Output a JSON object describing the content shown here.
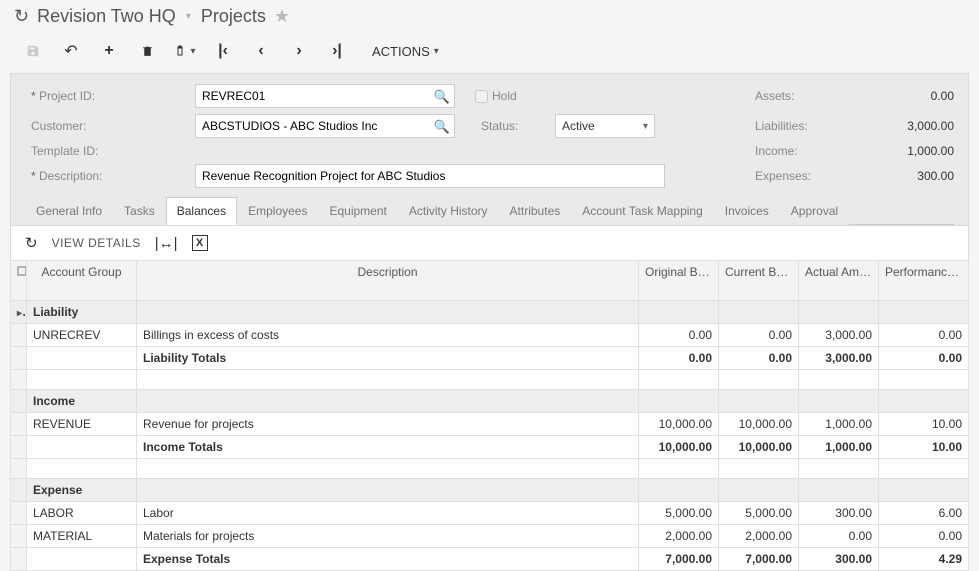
{
  "title": {
    "org": "Revision Two HQ",
    "page": "Projects"
  },
  "toolbar": {
    "actions": "ACTIONS"
  },
  "form": {
    "labels": {
      "project_id": "Project ID:",
      "customer": "Customer:",
      "template_id": "Template ID:",
      "description": "Description:",
      "hold": "Hold",
      "status": "Status:",
      "assets": "Assets:",
      "liabilities": "Liabilities:",
      "income": "Income:",
      "expenses": "Expenses:"
    },
    "values": {
      "project_id": "REVREC01",
      "customer": "ABCSTUDIOS - ABC Studios Inc",
      "template_id": "",
      "description": "Revenue Recognition Project for ABC Studios",
      "status": "Active",
      "assets": "0.00",
      "liabilities": "3,000.00",
      "income": "1,000.00",
      "expenses": "300.00"
    }
  },
  "tabs": [
    "General Info",
    "Tasks",
    "Balances",
    "Employees",
    "Equipment",
    "Activity History",
    "Attributes",
    "Account Task Mapping",
    "Invoices",
    "Approval"
  ],
  "active_tab": "Balances",
  "grid_toolbar": {
    "view_details": "VIEW DETAILS"
  },
  "grid": {
    "columns": {
      "account_group": "Account Group",
      "description": "Description",
      "orig_budget": "Original Budgeted Amount",
      "curr_budget": "Current Budgeted Amount",
      "actual": "Actual Amount",
      "performance": "Performance (%)"
    },
    "rows": [
      {
        "type": "group",
        "pointer": true,
        "acct": "Liability"
      },
      {
        "type": "data",
        "acct": "UNRECREV",
        "desc": "Billings in excess of costs",
        "orig": "0.00",
        "curr": "0.00",
        "actual": "3,000.00",
        "perf": "0.00"
      },
      {
        "type": "total",
        "desc": "Liability Totals",
        "orig": "0.00",
        "curr": "0.00",
        "actual": "3,000.00",
        "perf": "0.00"
      },
      {
        "type": "spacer"
      },
      {
        "type": "group",
        "acct": "Income"
      },
      {
        "type": "data",
        "acct": "REVENUE",
        "desc": "Revenue for projects",
        "orig": "10,000.00",
        "curr": "10,000.00",
        "actual": "1,000.00",
        "perf": "10.00"
      },
      {
        "type": "total",
        "desc": "Income Totals",
        "orig": "10,000.00",
        "curr": "10,000.00",
        "actual": "1,000.00",
        "perf": "10.00"
      },
      {
        "type": "spacer"
      },
      {
        "type": "group",
        "acct": "Expense"
      },
      {
        "type": "data",
        "acct": "LABOR",
        "desc": "Labor",
        "orig": "5,000.00",
        "curr": "5,000.00",
        "actual": "300.00",
        "perf": "6.00"
      },
      {
        "type": "data",
        "acct": "MATERIAL",
        "desc": "Materials for projects",
        "orig": "2,000.00",
        "curr": "2,000.00",
        "actual": "0.00",
        "perf": "0.00"
      },
      {
        "type": "total",
        "desc": "Expense Totals",
        "orig": "7,000.00",
        "curr": "7,000.00",
        "actual": "300.00",
        "perf": "4.29"
      }
    ]
  },
  "colors": {
    "border": "#d9d9d9",
    "page_bg": "#f5f5f5",
    "panel_bg": "#eaeaea",
    "text_muted": "#888"
  }
}
